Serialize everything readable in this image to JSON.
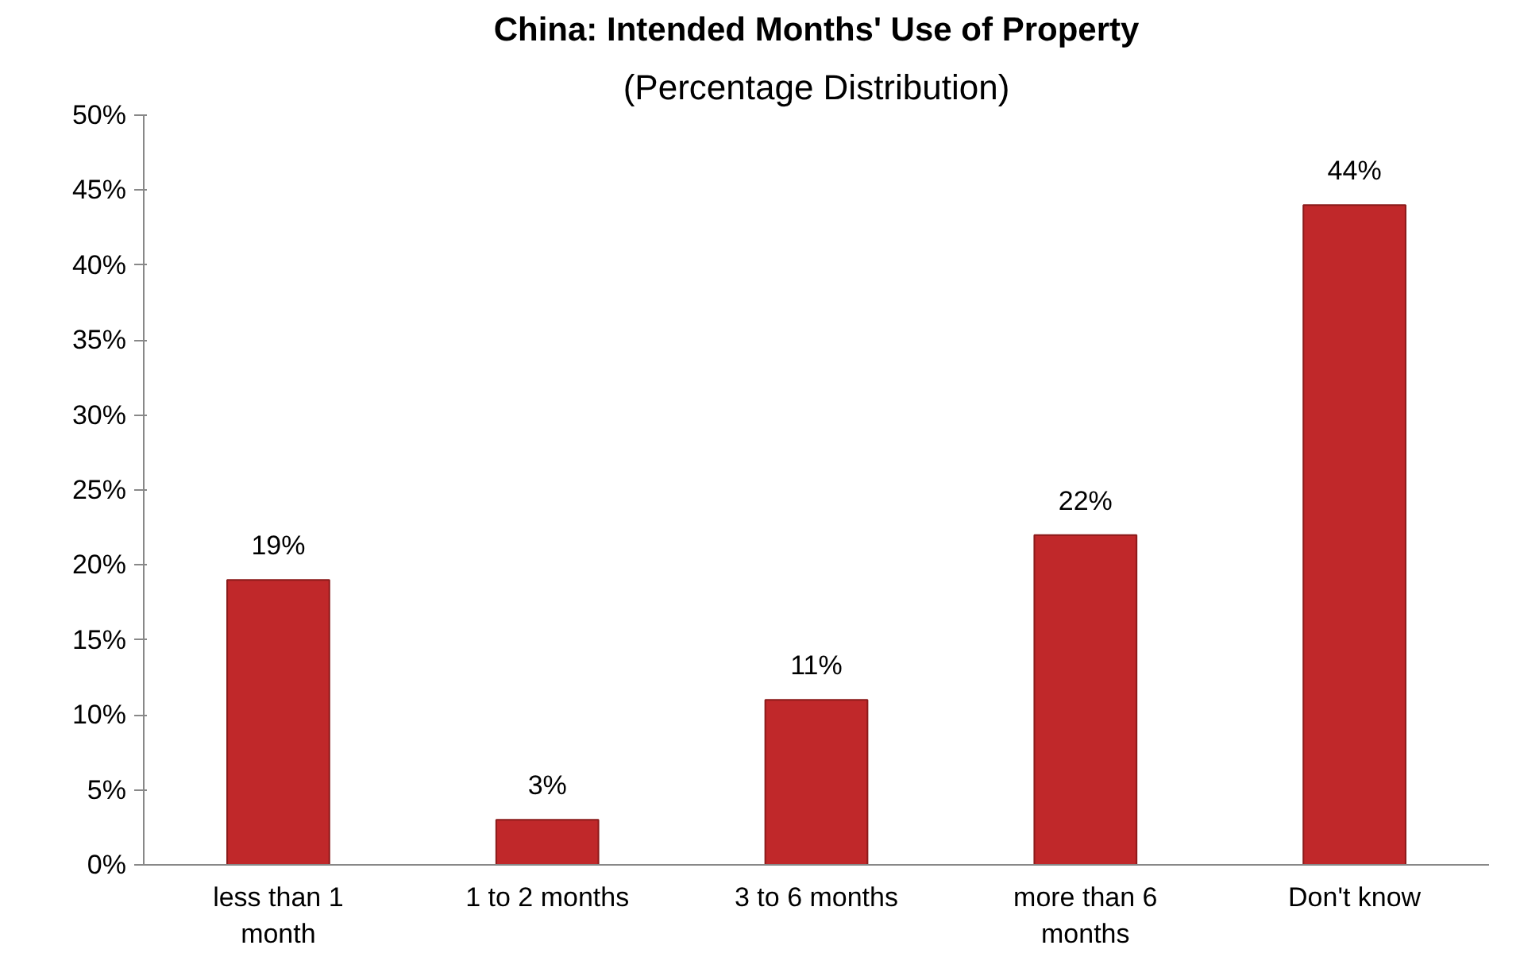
{
  "chart_data": {
    "type": "bar",
    "title": "China: Intended Months' Use of Property",
    "subtitle": "(Percentage Distribution)",
    "categories": [
      "less than 1 month",
      "1 to 2 months",
      "3 to 6 months",
      "more than 6 months",
      "Don't know"
    ],
    "values": [
      19,
      3,
      11,
      22,
      44
    ],
    "value_labels": [
      "19%",
      "3%",
      "11%",
      "22%",
      "44%"
    ],
    "color": "#c0282a",
    "ylim": [
      0,
      50
    ],
    "yticks": [
      {
        "value": 0,
        "label": "0%"
      },
      {
        "value": 5,
        "label": "5%"
      },
      {
        "value": 10,
        "label": "10%"
      },
      {
        "value": 15,
        "label": "15%"
      },
      {
        "value": 20,
        "label": "20%"
      },
      {
        "value": 25,
        "label": "25%"
      },
      {
        "value": 30,
        "label": "30%"
      },
      {
        "value": 35,
        "label": "35%"
      },
      {
        "value": 40,
        "label": "40%"
      },
      {
        "value": 45,
        "label": "45%"
      },
      {
        "value": 50,
        "label": "50%"
      }
    ],
    "grid": false
  }
}
